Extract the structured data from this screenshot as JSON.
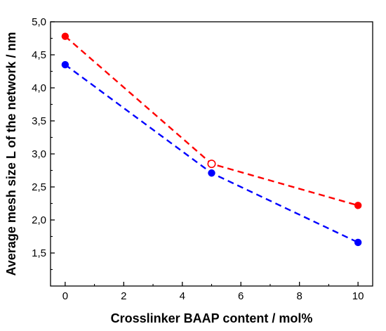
{
  "chart_data": {
    "type": "line",
    "title": "",
    "xlabel": "Crosslinker BAAP content / mol%",
    "ylabel": "Average mesh size L of the network / nm",
    "xlim": [
      -0.5,
      10.5
    ],
    "ylim": [
      1.0,
      5.0
    ],
    "x_ticks": [
      0,
      2,
      4,
      6,
      8,
      10
    ],
    "x_tick_labels": [
      "0",
      "2",
      "4",
      "6",
      "8",
      "10"
    ],
    "y_ticks": [
      1.5,
      2.0,
      2.5,
      3.0,
      3.5,
      4.0,
      4.5,
      5.0
    ],
    "y_tick_labels": [
      "1,5",
      "2,0",
      "2,5",
      "3,0",
      "3,5",
      "4,0",
      "4,5",
      "5,0"
    ],
    "grid": false,
    "series": [
      {
        "color": "#ff0000",
        "line_style": "dashed",
        "x": [
          0,
          5,
          10
        ],
        "y": [
          4.78,
          2.85,
          2.22
        ],
        "open_marker_at_index": 1
      },
      {
        "color": "#0000ff",
        "line_style": "dashed",
        "x": [
          0,
          5,
          10
        ],
        "y": [
          4.35,
          2.71,
          1.66
        ]
      }
    ]
  }
}
